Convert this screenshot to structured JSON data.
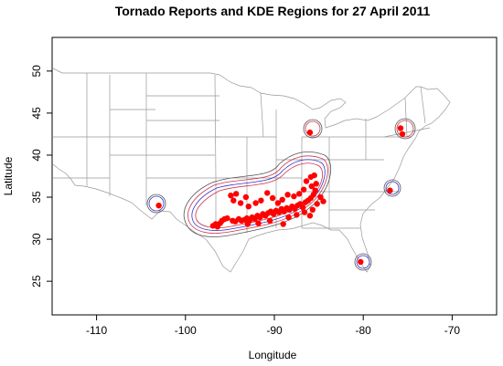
{
  "chart_data": {
    "type": "scatter",
    "title": "Tornado Reports and KDE Regions for 27 April 2011",
    "xlabel": "Longitude",
    "ylabel": "Latitude",
    "xlim": [
      -115,
      -65
    ],
    "ylim": [
      21,
      54
    ],
    "x_ticks": [
      -110,
      -100,
      -90,
      -80,
      -70
    ],
    "y_ticks": [
      25,
      30,
      35,
      40,
      45,
      50
    ],
    "grid": false,
    "legend": "none",
    "colors": {
      "points": "#ff0000",
      "contour_blue": "#3333cc",
      "contour_red": "#cc3344",
      "contour_black": "#555555",
      "map_lines": "#999999",
      "frame": "#000000"
    },
    "reports": [
      {
        "x": -96.9,
        "y": 31.6
      },
      {
        "x": -96.6,
        "y": 31.8
      },
      {
        "x": -96.4,
        "y": 31.5
      },
      {
        "x": -96.1,
        "y": 31.9
      },
      {
        "x": -95.9,
        "y": 32.2
      },
      {
        "x": -95.6,
        "y": 32.4
      },
      {
        "x": -95.3,
        "y": 32.5
      },
      {
        "x": -94.7,
        "y": 32.2
      },
      {
        "x": -94.4,
        "y": 32.1
      },
      {
        "x": -94.0,
        "y": 32.4
      },
      {
        "x": -93.7,
        "y": 32.2
      },
      {
        "x": -93.4,
        "y": 32.3
      },
      {
        "x": -93.1,
        "y": 32.5
      },
      {
        "x": -92.8,
        "y": 32.2
      },
      {
        "x": -92.5,
        "y": 32.6
      },
      {
        "x": -92.2,
        "y": 32.4
      },
      {
        "x": -91.9,
        "y": 32.8
      },
      {
        "x": -91.6,
        "y": 32.6
      },
      {
        "x": -91.3,
        "y": 33.0
      },
      {
        "x": -91.0,
        "y": 32.8
      },
      {
        "x": -90.7,
        "y": 33.1
      },
      {
        "x": -90.4,
        "y": 33.3
      },
      {
        "x": -90.1,
        "y": 33.0
      },
      {
        "x": -89.8,
        "y": 33.4
      },
      {
        "x": -89.5,
        "y": 33.2
      },
      {
        "x": -89.2,
        "y": 33.6
      },
      {
        "x": -88.9,
        "y": 33.3
      },
      {
        "x": -88.6,
        "y": 33.7
      },
      {
        "x": -88.3,
        "y": 33.5
      },
      {
        "x": -88.0,
        "y": 33.9
      },
      {
        "x": -87.7,
        "y": 33.6
      },
      {
        "x": -87.4,
        "y": 34.0
      },
      {
        "x": -87.1,
        "y": 34.2
      },
      {
        "x": -86.8,
        "y": 33.8
      },
      {
        "x": -86.5,
        "y": 34.4
      },
      {
        "x": -86.2,
        "y": 34.6
      },
      {
        "x": -85.9,
        "y": 34.9
      },
      {
        "x": -85.6,
        "y": 35.3
      },
      {
        "x": -85.4,
        "y": 35.8
      },
      {
        "x": -85.8,
        "y": 36.3
      },
      {
        "x": -85.3,
        "y": 36.6
      },
      {
        "x": -85.9,
        "y": 37.4
      },
      {
        "x": -85.5,
        "y": 37.6
      },
      {
        "x": -86.4,
        "y": 36.9
      },
      {
        "x": -86.7,
        "y": 35.9
      },
      {
        "x": -87.2,
        "y": 35.4
      },
      {
        "x": -87.8,
        "y": 35.1
      },
      {
        "x": -88.5,
        "y": 35.3
      },
      {
        "x": -89.1,
        "y": 34.7
      },
      {
        "x": -89.6,
        "y": 34.3
      },
      {
        "x": -90.2,
        "y": 34.9
      },
      {
        "x": -90.8,
        "y": 35.5
      },
      {
        "x": -91.5,
        "y": 34.6
      },
      {
        "x": -92.1,
        "y": 34.3
      },
      {
        "x": -92.9,
        "y": 33.9
      },
      {
        "x": -93.8,
        "y": 34.3
      },
      {
        "x": -94.6,
        "y": 34.6
      },
      {
        "x": -94.9,
        "y": 35.2
      },
      {
        "x": -94.3,
        "y": 35.4
      },
      {
        "x": -93.2,
        "y": 35.0
      },
      {
        "x": -88.4,
        "y": 32.6
      },
      {
        "x": -87.5,
        "y": 32.9
      },
      {
        "x": -86.6,
        "y": 33.2
      },
      {
        "x": -85.7,
        "y": 33.5
      },
      {
        "x": -85.2,
        "y": 34.2
      },
      {
        "x": -89.0,
        "y": 31.8
      },
      {
        "x": -90.5,
        "y": 32.2
      },
      {
        "x": -91.8,
        "y": 31.9
      },
      {
        "x": -93.0,
        "y": 31.8
      },
      {
        "x": -84.8,
        "y": 35.0
      },
      {
        "x": -84.5,
        "y": 34.5
      },
      {
        "x": -86.0,
        "y": 32.8
      },
      {
        "x": -103.0,
        "y": 34.0
      },
      {
        "x": -86.0,
        "y": 42.7
      },
      {
        "x": -75.8,
        "y": 43.2
      },
      {
        "x": -75.6,
        "y": 42.5
      },
      {
        "x": -77.0,
        "y": 35.8
      },
      {
        "x": -80.3,
        "y": 27.3
      }
    ]
  }
}
